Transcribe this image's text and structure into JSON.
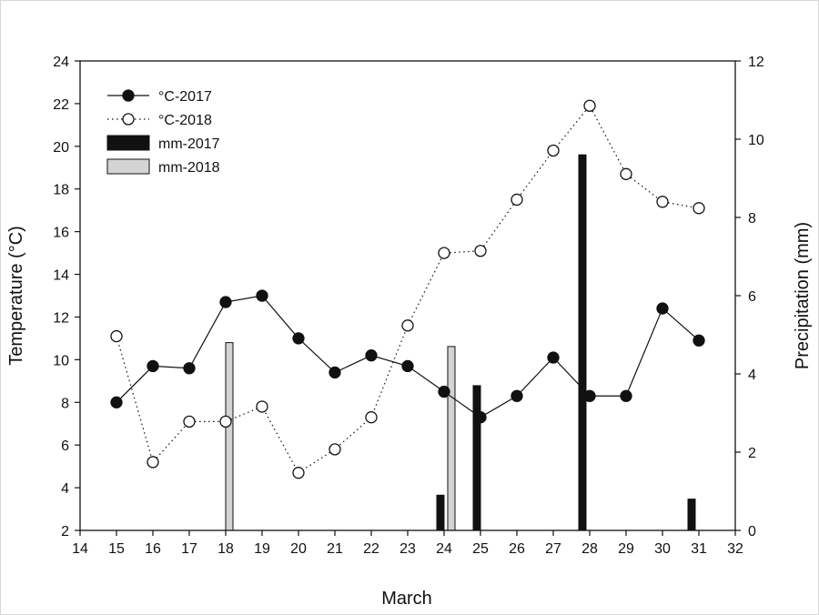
{
  "chart_data": {
    "type": "line",
    "xlabel": "March",
    "ylabel_left": "Temperature (°C)",
    "ylabel_right": "Precipitation (mm)",
    "xlim": [
      14,
      32
    ],
    "x_ticks": [
      14,
      15,
      16,
      17,
      18,
      19,
      20,
      21,
      22,
      23,
      24,
      25,
      26,
      27,
      28,
      29,
      30,
      31,
      32
    ],
    "ylim_left": [
      2,
      24
    ],
    "y_ticks_left": [
      2,
      4,
      6,
      8,
      10,
      12,
      14,
      16,
      18,
      20,
      22,
      24
    ],
    "ylim_right": [
      0,
      12
    ],
    "y_ticks_right": [
      0,
      2,
      4,
      6,
      8,
      10,
      12
    ],
    "grid": false,
    "legend_position": "top-left",
    "series": [
      {
        "name": "°C-2017",
        "kind": "line",
        "axis": "left",
        "marker": "filled-circle",
        "line_style": "solid",
        "color": "#111111",
        "x": [
          15,
          16,
          17,
          18,
          19,
          20,
          21,
          22,
          23,
          24,
          25,
          26,
          27,
          28,
          29,
          30,
          31
        ],
        "values": [
          8.0,
          9.7,
          9.6,
          12.7,
          13.0,
          11.0,
          9.4,
          10.2,
          9.7,
          8.5,
          7.3,
          8.3,
          10.1,
          8.3,
          8.3,
          12.4,
          10.9
        ]
      },
      {
        "name": "°C-2018",
        "kind": "line",
        "axis": "left",
        "marker": "open-circle",
        "line_style": "dotted",
        "color": "#111111",
        "x": [
          15,
          16,
          17,
          18,
          19,
          20,
          21,
          22,
          23,
          24,
          25,
          26,
          27,
          28,
          29,
          30,
          31
        ],
        "values": [
          11.1,
          5.2,
          7.1,
          7.1,
          7.8,
          4.7,
          5.8,
          7.3,
          11.6,
          15.0,
          15.1,
          17.5,
          19.8,
          21.9,
          18.7,
          17.4,
          17.1
        ]
      },
      {
        "name": "mm-2017",
        "kind": "bar",
        "axis": "right",
        "color": "#111111",
        "x": [
          23.9,
          24.9,
          27.8,
          30.8
        ],
        "values": [
          0.9,
          3.7,
          9.6,
          0.8
        ]
      },
      {
        "name": "mm-2018",
        "kind": "bar",
        "axis": "right",
        "color": "#d4d4d4",
        "x": [
          18.1,
          24.2
        ],
        "values": [
          4.8,
          4.7
        ]
      }
    ]
  }
}
